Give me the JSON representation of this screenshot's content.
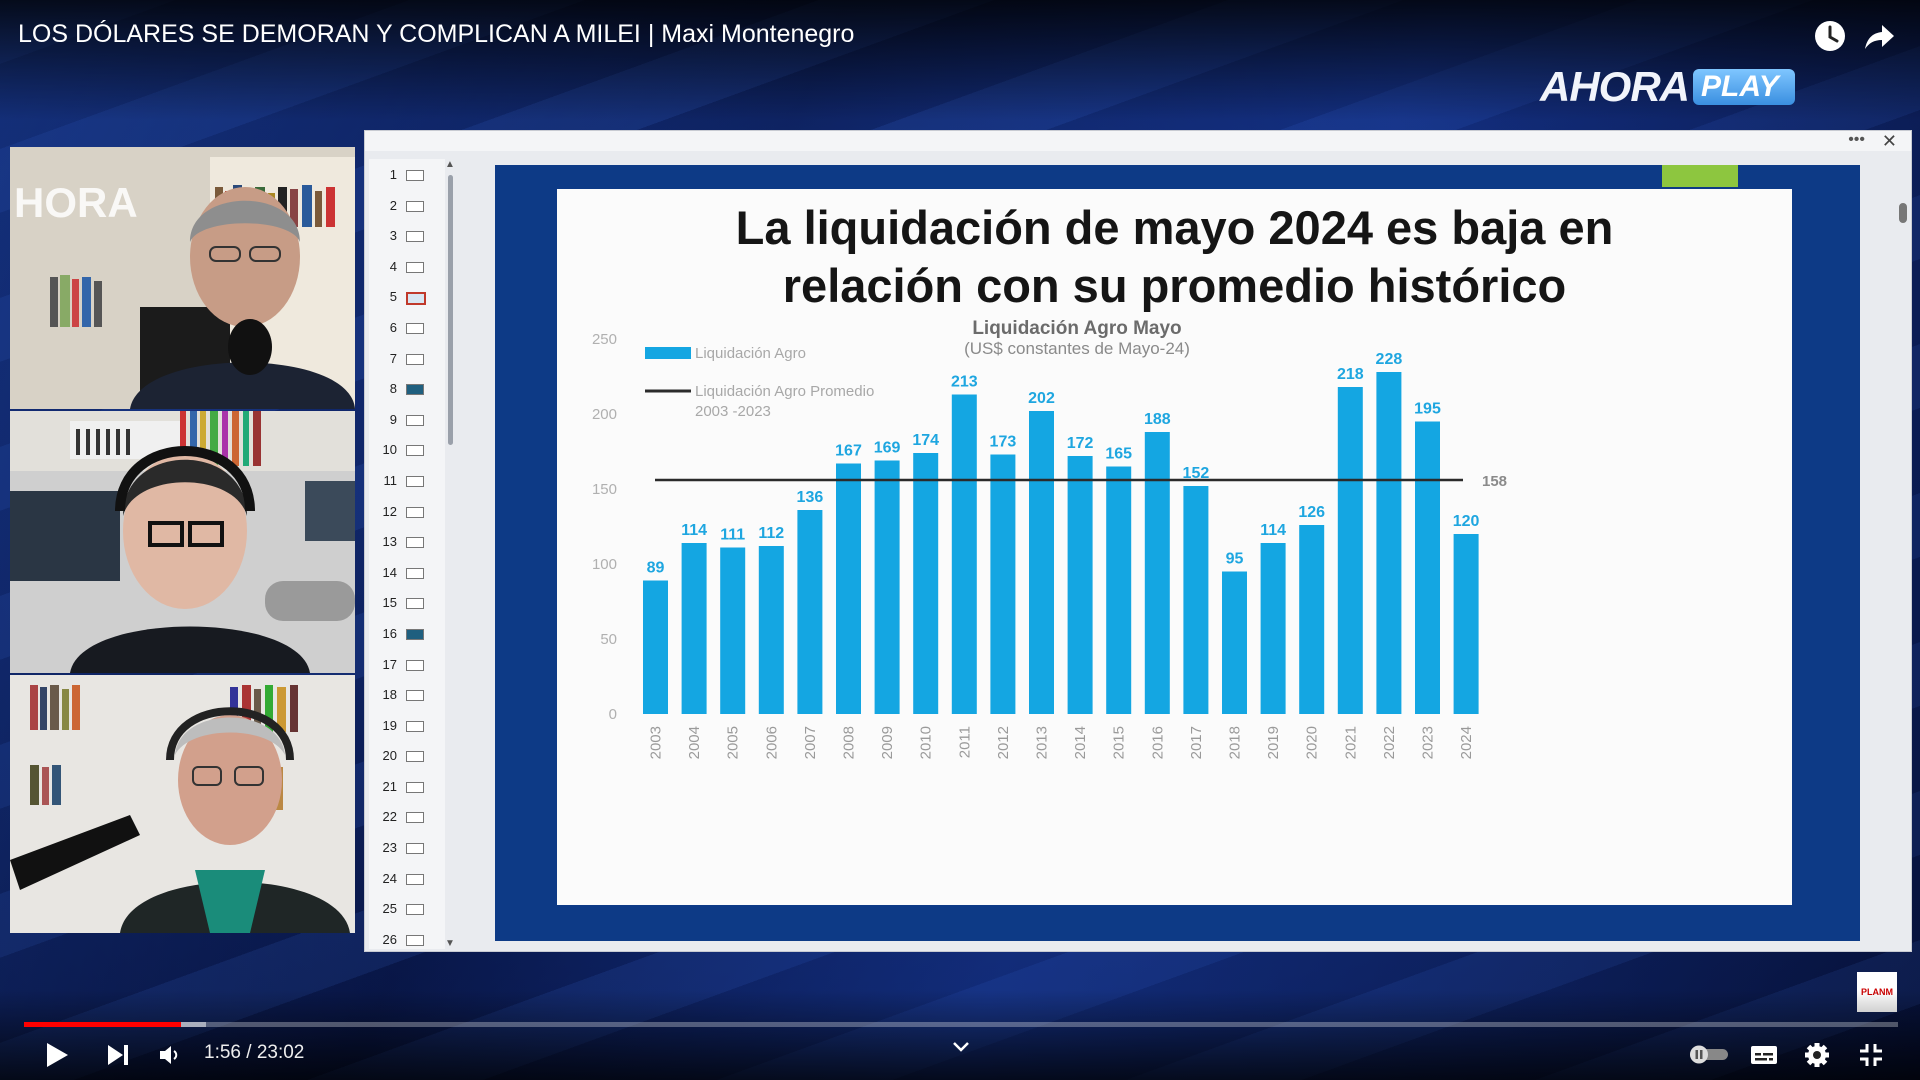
{
  "video": {
    "title": "LOS DÓLARES SE DEMORAN Y COMPLICAN A MILEI | Maxi Montenegro",
    "logo_part1": "AHORA",
    "logo_part2": "PLAY",
    "corner_logo": "PLANM"
  },
  "player": {
    "current_time": "1:56",
    "duration": "23:02",
    "time_text": "1:56 / 23:02",
    "progress_played": 0.084,
    "progress_buffered": 0.097,
    "icons": [
      "play-icon",
      "next-icon",
      "volume-icon",
      "chevron-down-icon",
      "autoplay-toggle-icon",
      "subtitles-icon",
      "settings-icon",
      "exit-fullscreen-icon",
      "watch-later-icon",
      "share-icon"
    ]
  },
  "slides_panel": {
    "numbers": [
      "1",
      "2",
      "3",
      "4",
      "5",
      "6",
      "7",
      "8",
      "9",
      "10",
      "11",
      "12",
      "13",
      "14",
      "15",
      "16",
      "17",
      "18",
      "19",
      "20",
      "21",
      "22",
      "23",
      "24",
      "25",
      "26"
    ],
    "selected": "5"
  },
  "slide": {
    "title_line1": "La liquidación de mayo 2024 es baja en",
    "title_line2": "relación con su promedio histórico"
  },
  "chart_data": {
    "type": "bar",
    "title": "Liquidación Agro Mayo",
    "subtitle": "(US$ constantes de Mayo-24)",
    "categories": [
      "2003",
      "2004",
      "2005",
      "2006",
      "2007",
      "2008",
      "2009",
      "2010",
      "2011",
      "2012",
      "2013",
      "2014",
      "2015",
      "2016",
      "2017",
      "2018",
      "2019",
      "2020",
      "2021",
      "2022",
      "2023",
      "2024"
    ],
    "series": [
      {
        "name": "Liquidación Agro",
        "values": [
          89,
          114,
          111,
          112,
          136,
          167,
          169,
          174,
          213,
          173,
          202,
          172,
          165,
          188,
          152,
          95,
          114,
          126,
          218,
          228,
          195,
          120
        ]
      }
    ],
    "reference_line": {
      "name_line1": "Liquidación Agro Promedio",
      "name_line2": "2003 -2023",
      "value": 158,
      "label": "158"
    },
    "yticks": [
      "0",
      "50",
      "100",
      "150",
      "200",
      "250"
    ],
    "ylim": [
      0,
      250
    ],
    "legend": "top-left",
    "colors": {
      "bar": "#14a6e2",
      "line": "#2b2b2b",
      "label": "#1ea6e0"
    }
  },
  "colors": {
    "accent_red": "#ff0000",
    "slide_frame": "#0d3a86",
    "slide_accent": "#8dc63f"
  }
}
